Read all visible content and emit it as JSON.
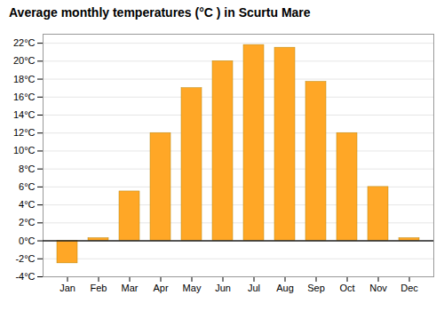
{
  "chart_data": {
    "type": "bar",
    "title": "Average monthly temperatures (°C ) in Scurtu Mare",
    "categories": [
      "Jan",
      "Feb",
      "Mar",
      "Apr",
      "May",
      "Jun",
      "Jul",
      "Aug",
      "Sep",
      "Oct",
      "Nov",
      "Dec"
    ],
    "values": [
      -2.5,
      0.3,
      5.5,
      12.0,
      17.0,
      20.0,
      21.8,
      21.5,
      17.7,
      12.0,
      6.0,
      0.3
    ],
    "color": "#FFA726",
    "ylim": [
      -4,
      23
    ],
    "yticks": [
      {
        "value": -4,
        "label": "-4°C"
      },
      {
        "value": -2,
        "label": "-2°C"
      },
      {
        "value": 0,
        "label": "0°C"
      },
      {
        "value": 2,
        "label": "2°C"
      },
      {
        "value": 4,
        "label": "4°C"
      },
      {
        "value": 6,
        "label": "6°C"
      },
      {
        "value": 8,
        "label": "8°C"
      },
      {
        "value": 10,
        "label": "10°C"
      },
      {
        "value": 12,
        "label": "12°C"
      },
      {
        "value": 14,
        "label": "14°C"
      },
      {
        "value": 16,
        "label": "16°C"
      },
      {
        "value": 18,
        "label": "18°C"
      },
      {
        "value": 20,
        "label": "20°C"
      },
      {
        "value": 22,
        "label": "22°C"
      }
    ],
    "grid": true
  }
}
